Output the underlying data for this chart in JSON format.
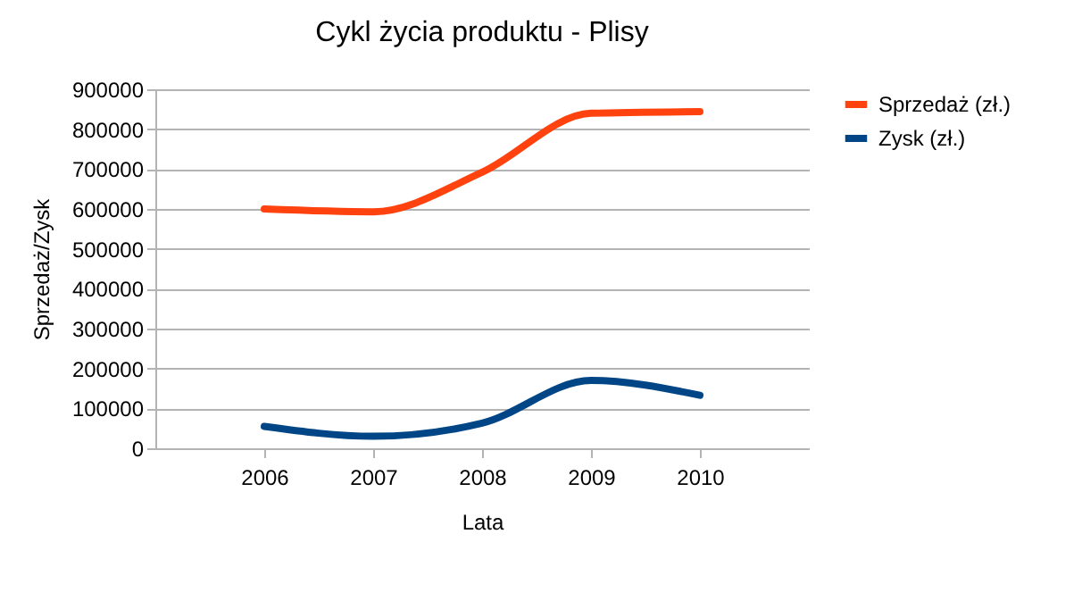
{
  "chart_data": {
    "type": "line",
    "title": "Cykl życia produktu - Plisy",
    "xlabel": "Lata",
    "ylabel": "Sprzedaż/Zysk",
    "x": [
      2006,
      2007,
      2008,
      2009,
      2010
    ],
    "xlim": [
      2005,
      2011
    ],
    "xticks": [
      2006,
      2007,
      2008,
      2009,
      2010
    ],
    "ylim": [
      0,
      900000
    ],
    "yticks": [
      0,
      100000,
      200000,
      300000,
      400000,
      500000,
      600000,
      700000,
      800000,
      900000
    ],
    "grid": "y",
    "legend": "right",
    "marker": "none",
    "series": [
      {
        "name": "Sprzedaż (zł.)",
        "color": "#ff420e",
        "values": [
          600000,
          593000,
          692000,
          840000,
          844000
        ]
      },
      {
        "name": "Zysk (zł.)",
        "color": "#004586",
        "values": [
          55000,
          30000,
          63000,
          170000,
          133000
        ]
      }
    ]
  }
}
